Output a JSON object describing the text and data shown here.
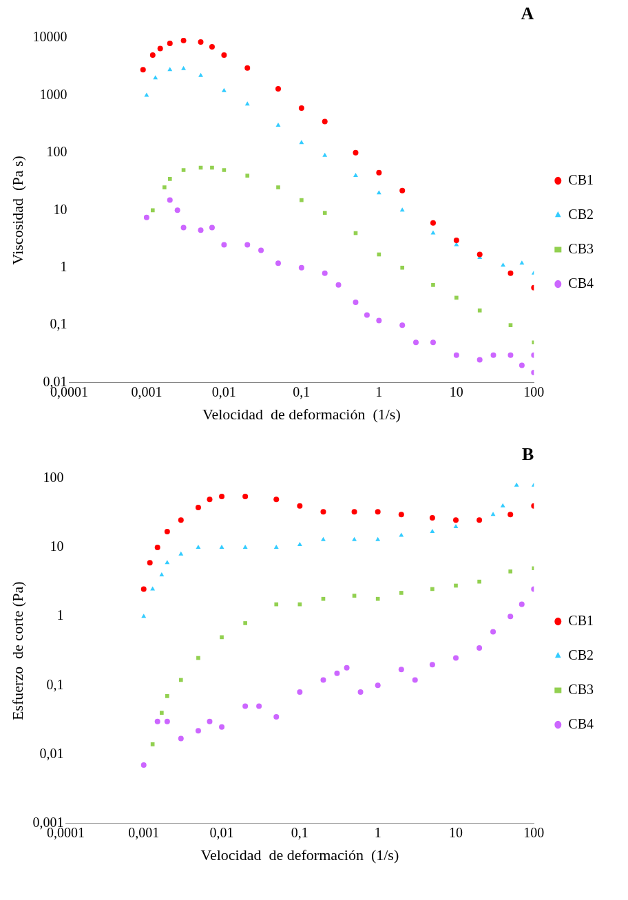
{
  "chart_data": [
    {
      "type": "scatter",
      "title": "A",
      "xlabel": "Velocidad  de deformación  (1/s)",
      "ylabel": "Viscosidad  (Pa s)",
      "log": "xy",
      "grid": false,
      "legend": "right",
      "xlim": [
        0.0001,
        100
      ],
      "xticks": [
        {
          "value": 0.0001,
          "label": "0,0001"
        },
        {
          "value": 0.001,
          "label": "0,001"
        },
        {
          "value": 0.01,
          "label": "0,01"
        },
        {
          "value": 0.1,
          "label": "0,1"
        },
        1,
        10,
        100
      ],
      "ylim": [
        0.01,
        10000
      ],
      "yticks": [
        {
          "value": 0.01,
          "label": "0,01"
        },
        {
          "value": 0.1,
          "label": "0,1"
        },
        1,
        10,
        100,
        1000,
        10000
      ],
      "series": [
        {
          "name": "CB1",
          "color": "#ff0000",
          "marker": "circle",
          "x": [
            0.0009,
            0.0012,
            0.0015,
            0.002,
            0.003,
            0.005,
            0.007,
            0.01,
            0.02,
            0.05,
            0.1,
            0.2,
            0.5,
            1,
            2,
            5,
            10,
            20,
            50,
            100
          ],
          "values": [
            2800,
            5000,
            6500,
            8000,
            9000,
            8500,
            7000,
            5000,
            3000,
            1300,
            600,
            350,
            100,
            45,
            22,
            6,
            3,
            1.7,
            0.8,
            0.45
          ]
        },
        {
          "name": "CB2",
          "color": "#33ccff",
          "marker": "triangle",
          "x": [
            0.001,
            0.0013,
            0.002,
            0.003,
            0.005,
            0.01,
            0.02,
            0.05,
            0.1,
            0.2,
            0.5,
            1,
            2,
            5,
            10,
            20,
            40,
            70,
            100
          ],
          "values": [
            1000,
            2000,
            2800,
            2900,
            2200,
            1200,
            700,
            300,
            150,
            90,
            40,
            20,
            10,
            4,
            2.5,
            1.5,
            1.1,
            1.2,
            0.8
          ]
        },
        {
          "name": "CB3",
          "color": "#92d050",
          "marker": "square",
          "x": [
            0.0012,
            0.0017,
            0.002,
            0.003,
            0.005,
            0.007,
            0.01,
            0.02,
            0.05,
            0.1,
            0.2,
            0.5,
            1,
            2,
            5,
            10,
            20,
            50,
            100
          ],
          "values": [
            10,
            25,
            35,
            50,
            55,
            55,
            50,
            40,
            25,
            15,
            9,
            4,
            1.7,
            1,
            0.5,
            0.3,
            0.18,
            0.1,
            0.05
          ]
        },
        {
          "name": "CB4",
          "color": "#cc66ff",
          "marker": "circle",
          "x": [
            0.001,
            0.002,
            0.0025,
            0.003,
            0.005,
            0.007,
            0.01,
            0.02,
            0.03,
            0.05,
            0.1,
            0.2,
            0.3,
            0.5,
            0.7,
            1,
            2,
            3,
            5,
            10,
            20,
            30,
            50,
            70,
            100,
            100
          ],
          "values": [
            7.5,
            15,
            10,
            5,
            4.5,
            5,
            2.5,
            2.5,
            2,
            1.2,
            1,
            0.8,
            0.5,
            0.25,
            0.15,
            0.12,
            0.1,
            0.05,
            0.05,
            0.03,
            0.025,
            0.03,
            0.03,
            0.02,
            0.03,
            0.015
          ]
        }
      ]
    },
    {
      "type": "scatter",
      "title": "B",
      "xlabel": "Velocidad  de deformación  (1/s)",
      "ylabel": "Esfuerzo  de corte (Pa)",
      "log": "xy",
      "grid": false,
      "legend": "right",
      "xlim": [
        0.0001,
        100
      ],
      "xticks": [
        {
          "value": 0.0001,
          "label": "0,0001"
        },
        {
          "value": 0.001,
          "label": "0,001"
        },
        {
          "value": 0.01,
          "label": "0,01"
        },
        {
          "value": 0.1,
          "label": "0,1"
        },
        1,
        10,
        100
      ],
      "ylim": [
        0.001,
        100
      ],
      "yticks": [
        {
          "value": 0.001,
          "label": "0,001"
        },
        {
          "value": 0.01,
          "label": "0,01"
        },
        {
          "value": 0.1,
          "label": "0,1"
        },
        1,
        10,
        100
      ],
      "series": [
        {
          "name": "CB1",
          "color": "#ff0000",
          "marker": "circle",
          "x": [
            0.001,
            0.0012,
            0.0015,
            0.002,
            0.003,
            0.005,
            0.007,
            0.01,
            0.02,
            0.05,
            0.1,
            0.2,
            0.5,
            1,
            2,
            5,
            10,
            20,
            50,
            100
          ],
          "values": [
            2.5,
            6,
            10,
            17,
            25,
            38,
            50,
            55,
            55,
            50,
            40,
            33,
            33,
            33,
            30,
            27,
            25,
            25,
            30,
            40
          ]
        },
        {
          "name": "CB2",
          "color": "#33ccff",
          "marker": "triangle",
          "x": [
            0.001,
            0.0013,
            0.0017,
            0.002,
            0.003,
            0.005,
            0.01,
            0.02,
            0.05,
            0.1,
            0.2,
            0.5,
            1,
            2,
            5,
            10,
            30,
            40,
            60,
            100
          ],
          "values": [
            1,
            2.5,
            4,
            6,
            8,
            10,
            10,
            10,
            10,
            11,
            13,
            13,
            13,
            15,
            17,
            20,
            30,
            40,
            80,
            80
          ]
        },
        {
          "name": "CB3",
          "color": "#92d050",
          "marker": "square",
          "x": [
            0.0013,
            0.0017,
            0.002,
            0.003,
            0.005,
            0.01,
            0.02,
            0.05,
            0.1,
            0.2,
            0.5,
            1,
            2,
            5,
            10,
            20,
            50,
            100
          ],
          "values": [
            0.014,
            0.04,
            0.07,
            0.12,
            0.25,
            0.5,
            0.8,
            1.5,
            1.5,
            1.8,
            2,
            1.8,
            2.2,
            2.5,
            2.8,
            3.2,
            4.5,
            5
          ]
        },
        {
          "name": "CB4",
          "color": "#cc66ff",
          "marker": "circle",
          "x": [
            0.001,
            0.0015,
            0.002,
            0.003,
            0.005,
            0.007,
            0.01,
            0.02,
            0.03,
            0.05,
            0.1,
            0.2,
            0.3,
            0.4,
            0.6,
            1,
            2,
            3,
            5,
            10,
            20,
            30,
            50,
            70,
            100
          ],
          "values": [
            0.007,
            0.03,
            0.03,
            0.017,
            0.022,
            0.03,
            0.025,
            0.05,
            0.05,
            0.035,
            0.08,
            0.12,
            0.15,
            0.18,
            0.08,
            0.1,
            0.17,
            0.12,
            0.2,
            0.25,
            0.35,
            0.6,
            1,
            1.5,
            2.5
          ]
        }
      ]
    }
  ]
}
